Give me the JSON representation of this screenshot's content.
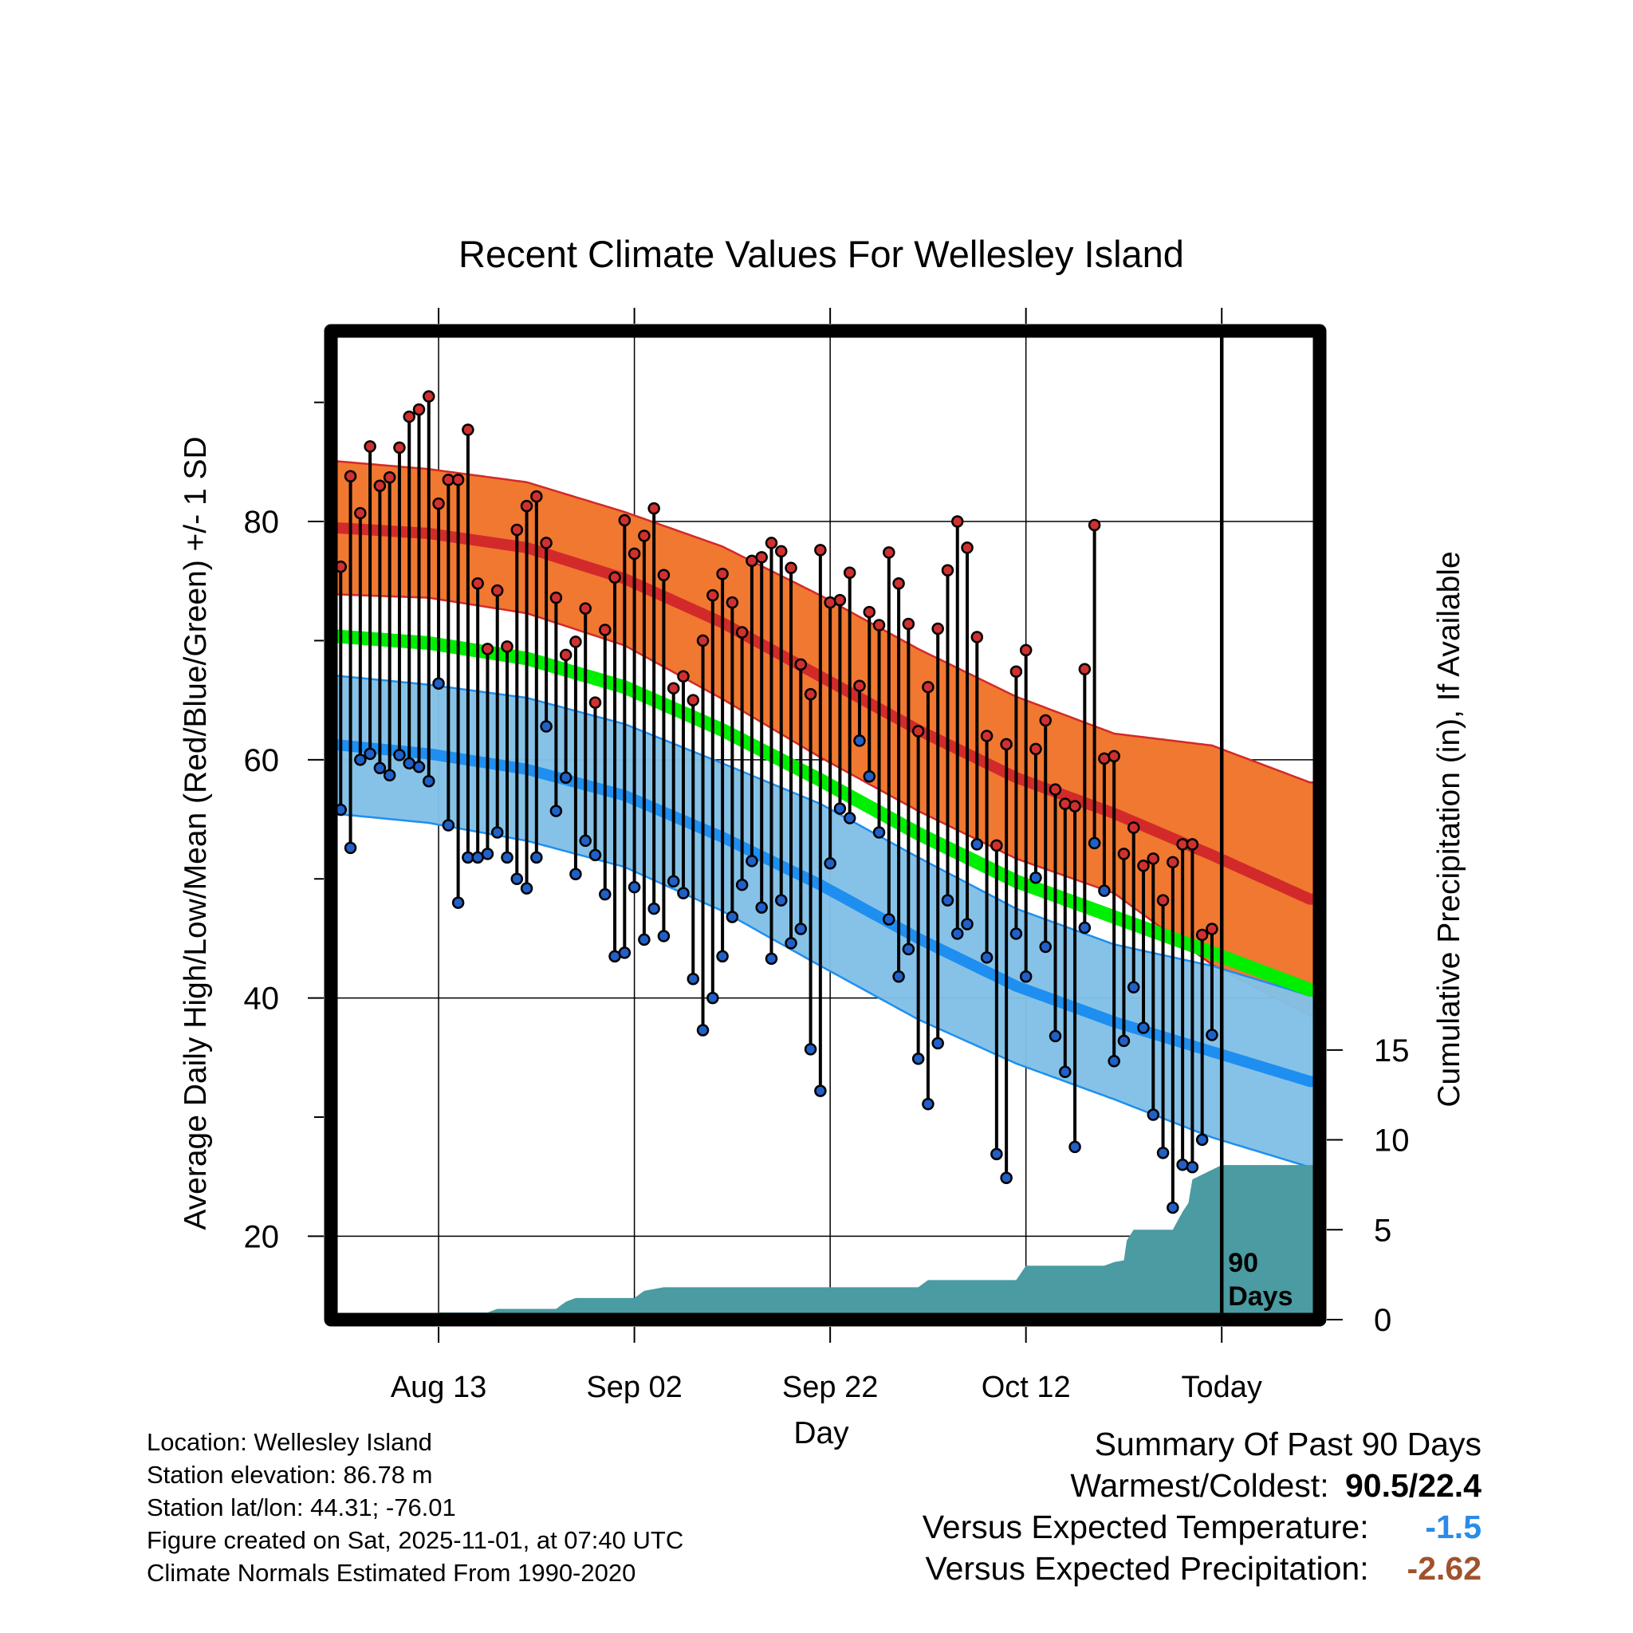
{
  "colors": {
    "high_band": "#f07830",
    "high_line": "#d22a2a",
    "low_band": "#82c0e6",
    "low_line": "#1e8ff0",
    "mean_line": "#00ee00",
    "precip": "#4a9ba2",
    "high_dot": "#d03030",
    "low_dot": "#2060c8",
    "temp_anomaly": "#2b8be8",
    "precip_anomaly": "#a0522d"
  },
  "chart_data": {
    "type": "climate",
    "title": "Recent Climate Values For Wellesley Island",
    "xlabel": "Day",
    "ylabel": "Average Daily High/Low/Mean (Red/Blue/Green) +/- 1 SD",
    "y2label": "Cumulative Precipitation (in), If Available",
    "x_tick_labels": [
      "Aug 13",
      "Sep 02",
      "Sep 22",
      "Oct 12",
      "Today"
    ],
    "x_tick_days": [
      11,
      31,
      51,
      71,
      91
    ],
    "x_range": [
      0,
      101
    ],
    "ylim": [
      13,
      96
    ],
    "y_ticks": [
      20,
      40,
      60,
      80
    ],
    "y2lim": [
      0,
      55
    ],
    "y2_ticks": [
      0,
      5,
      10,
      15
    ],
    "today_label": "90\nDays",
    "normals": {
      "day": [
        0,
        10,
        20,
        30,
        40,
        50,
        60,
        70,
        80,
        90,
        100
      ],
      "high": [
        79.5,
        79.0,
        77.8,
        75.2,
        71.5,
        67.0,
        62.5,
        58.5,
        55.5,
        52.0,
        48.3
      ],
      "high_sd": [
        5.6,
        5.4,
        5.5,
        5.6,
        6.4,
        6.8,
        6.8,
        6.8,
        6.7,
        9.2,
        9.8
      ],
      "low": [
        61.3,
        60.5,
        59.2,
        57.0,
        53.5,
        49.5,
        45.0,
        41.0,
        38.0,
        35.5,
        33.0
      ],
      "low_sd": [
        5.8,
        5.8,
        6.0,
        6.0,
        6.2,
        6.8,
        6.8,
        6.5,
        6.5,
        7.2,
        7.2
      ],
      "mean": [
        70.4,
        69.8,
        68.5,
        66.1,
        62.5,
        58.3,
        53.8,
        49.8,
        46.8,
        43.8,
        40.7
      ]
    },
    "highs": [
      76.2,
      83.8,
      80.7,
      86.3,
      83.0,
      83.7,
      86.2,
      88.8,
      89.4,
      90.5,
      81.5,
      83.5,
      83.5,
      87.7,
      74.8,
      69.3,
      74.2,
      69.5,
      79.3,
      81.3,
      82.1,
      78.2,
      73.6,
      68.8,
      69.9,
      72.7,
      64.8,
      70.9,
      75.3,
      80.1,
      77.3,
      78.8,
      81.1,
      75.5,
      66.0,
      67.0,
      65.0,
      70.0,
      73.8,
      75.6,
      73.2,
      70.7,
      76.7,
      77.0,
      78.2,
      77.5,
      76.1,
      68.0,
      65.5,
      77.6,
      73.2,
      73.4,
      75.7,
      66.2,
      72.4,
      71.3,
      77.4,
      74.8,
      71.4,
      62.4,
      66.1,
      71.0,
      75.9,
      80.0,
      77.8,
      70.3,
      62.0,
      52.8,
      61.3,
      67.4,
      69.2,
      60.9,
      63.3,
      57.5,
      56.3,
      56.1,
      67.6,
      79.7,
      60.1,
      60.3,
      52.1,
      54.3,
      51.1,
      51.7,
      48.2,
      51.4,
      52.9,
      52.9,
      45.3,
      45.8
    ],
    "lows": [
      55.8,
      52.6,
      60.0,
      60.5,
      59.3,
      58.7,
      60.4,
      59.7,
      59.4,
      58.2,
      66.4,
      54.5,
      48.0,
      51.8,
      51.8,
      52.1,
      53.9,
      51.8,
      50.0,
      49.2,
      51.8,
      62.8,
      55.7,
      58.5,
      50.4,
      53.2,
      52.0,
      48.7,
      43.5,
      43.8,
      49.3,
      44.9,
      47.5,
      45.2,
      49.8,
      48.8,
      41.6,
      37.3,
      40.0,
      43.5,
      46.8,
      49.5,
      51.5,
      47.6,
      43.3,
      48.2,
      44.6,
      45.8,
      35.7,
      32.2,
      51.3,
      55.9,
      55.1,
      61.6,
      58.6,
      53.9,
      46.6,
      41.8,
      44.1,
      34.9,
      31.1,
      36.2,
      48.2,
      45.4,
      46.2,
      52.9,
      43.4,
      26.9,
      24.9,
      45.4,
      41.8,
      50.1,
      44.3,
      36.8,
      33.8,
      27.5,
      45.9,
      53.0,
      49.0,
      34.7,
      36.4,
      40.9,
      37.5,
      30.2,
      27.0,
      22.4,
      26.0,
      25.8,
      28.1,
      36.9
    ],
    "precip": {
      "day": [
        0,
        10.5,
        11,
        16,
        17,
        23,
        24,
        25,
        31,
        32,
        34,
        60,
        61,
        70,
        71,
        79,
        80,
        81,
        81.3,
        82,
        86,
        87,
        87.6,
        88,
        91,
        101
      ],
      "value": [
        0,
        0,
        0.4,
        0.4,
        0.6,
        0.6,
        1.0,
        1.2,
        1.2,
        1.6,
        1.8,
        1.8,
        2.2,
        2.2,
        3.0,
        3.0,
        3.2,
        3.3,
        4.4,
        5.0,
        5.0,
        6.0,
        6.5,
        7.8,
        8.6,
        8.6
      ]
    }
  },
  "info": {
    "location": "Location: Wellesley Island",
    "elevation": "Station elevation: 86.78 m",
    "latlon": "Station lat/lon: 44.31; -76.01",
    "created": "Figure created on Sat, 2025-11-01, at 07:40 UTC",
    "normals": "Climate Normals Estimated From 1990-2020"
  },
  "summary": {
    "title": "Summary Of Past 90 Days",
    "warmest_label": "Warmest/Coldest:",
    "warmest_value": "90.5/22.4",
    "temp_label": "Versus Expected Temperature:",
    "temp_value": "-1.5",
    "precip_label": "Versus Expected Precipitation:",
    "precip_value": "-2.62"
  }
}
